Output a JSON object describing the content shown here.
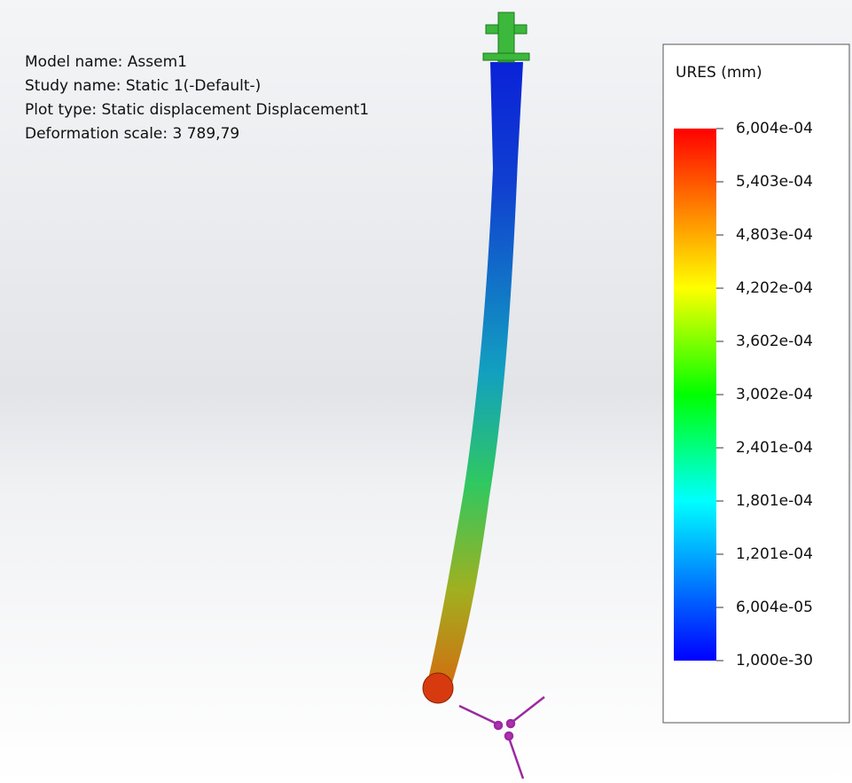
{
  "info": [
    "Model name: Assem1",
    "Study name: Static 1(-Default-)",
    "Plot type: Static displacement Displacement1",
    "Deformation scale: 3 789,79"
  ],
  "legend": {
    "title": "URES (mm)",
    "labels": [
      "6,004e-04",
      "5,403e-04",
      "4,803e-04",
      "4,202e-04",
      "3,602e-04",
      "3,002e-04",
      "2,401e-04",
      "1,801e-04",
      "1,201e-04",
      "6,004e-05",
      "1,000e-30"
    ]
  }
}
